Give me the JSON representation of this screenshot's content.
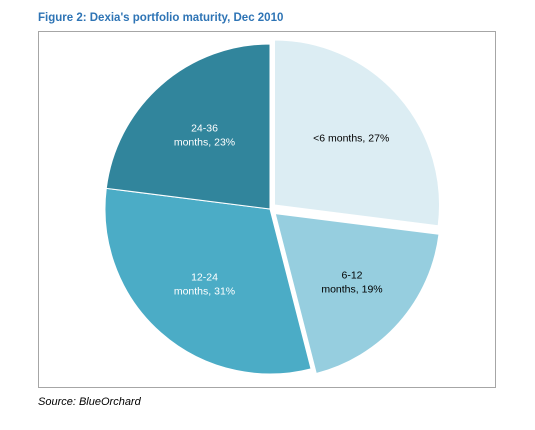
{
  "figure": {
    "title": "Figure 2: Dexia's portfolio maturity, Dec 2010",
    "source": "Source: BlueOrchard"
  },
  "chart_data": {
    "type": "pie",
    "exploded": true,
    "slices": [
      {
        "label_lines": [
          "<6 months, 27%"
        ],
        "category": "<6 months",
        "value": 27,
        "color": "#dcedf3",
        "label_color": "#000000"
      },
      {
        "label_lines": [
          "6-12",
          "months, 19%"
        ],
        "category": "6-12 months",
        "value": 19,
        "color": "#96cedf",
        "label_color": "#000000"
      },
      {
        "label_lines": [
          "12-24",
          "months, 31%"
        ],
        "category": "12-24 months",
        "value": 31,
        "color": "#4bacc6",
        "label_color": "#ffffff"
      },
      {
        "label_lines": [
          "24-36",
          "months, 23%"
        ],
        "category": "24-36 months",
        "value": 23,
        "color": "#31859c",
        "label_color": "#ffffff"
      }
    ],
    "start_angle": "12 o'clock",
    "direction": "clockwise",
    "slice_border": "#ffffff",
    "legend": "none"
  }
}
